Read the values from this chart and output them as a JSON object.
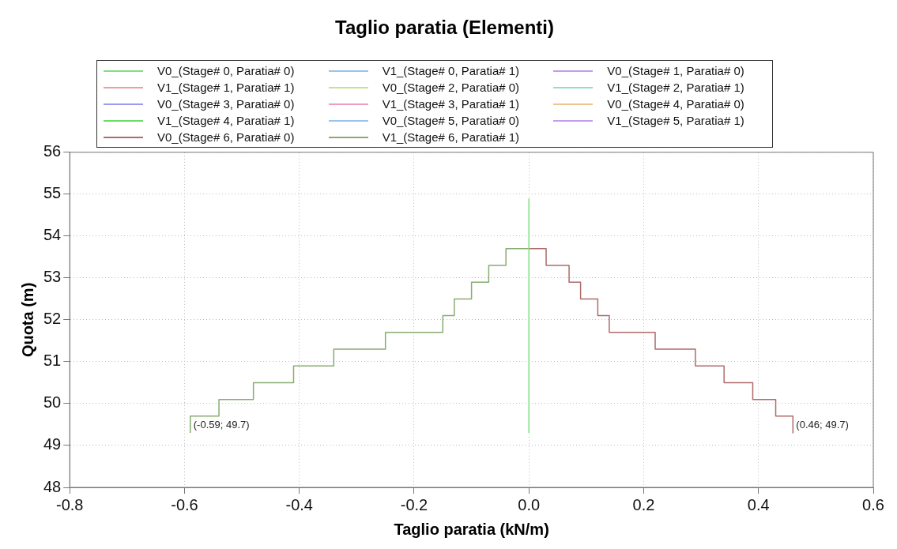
{
  "chart_data": {
    "type": "line",
    "title": "Taglio paratia (Elementi)",
    "xlabel": "Taglio paratia (kN/m)",
    "ylabel": "Quota (m)",
    "xlim": [
      -0.8,
      0.6
    ],
    "xticks": [
      {
        "value": -0.8,
        "label": "-0.8"
      },
      {
        "value": -0.6,
        "label": "-0.6"
      },
      {
        "value": -0.4,
        "label": "-0.4"
      },
      {
        "value": -0.2,
        "label": "-0.2"
      },
      {
        "value": 0,
        "label": "0.0"
      },
      {
        "value": 0.2,
        "label": "0.2"
      },
      {
        "value": 0.4,
        "label": "0.4"
      },
      {
        "value": 0.6,
        "label": "0.6"
      }
    ],
    "ylim": [
      48,
      56
    ],
    "yticks": [
      48,
      49,
      50,
      51,
      52,
      53,
      54,
      55,
      56
    ],
    "grid": true,
    "legend": "top",
    "marker": "none",
    "line_style": "solid",
    "series": [
      {
        "name": "V0_(Stage# 0, Paratia# 0)",
        "color": "#80e080",
        "x": [
          0,
          0
        ],
        "values": [
          49.3,
          54.9
        ]
      },
      {
        "name": "V1_(Stage# 0, Paratia# 1)",
        "color": "#98c4ee",
        "x": [
          null,
          null
        ],
        "values": [
          null,
          null
        ]
      },
      {
        "name": "V0_(Stage# 1, Paratia# 0)",
        "color": "#c49cee",
        "x": [
          null,
          null
        ],
        "values": [
          null,
          null
        ]
      },
      {
        "name": "V1_(Stage# 1, Paratia# 1)",
        "color": "#ee9c9c",
        "x": [
          null,
          null
        ],
        "values": [
          null,
          null
        ]
      },
      {
        "name": "V0_(Stage# 2, Paratia# 0)",
        "color": "#c4e488",
        "x": [
          null,
          null
        ],
        "values": [
          null,
          null
        ]
      },
      {
        "name": "V1_(Stage# 2, Paratia# 1)",
        "color": "#88e4c4",
        "x": [
          null,
          null
        ],
        "values": [
          null,
          null
        ]
      },
      {
        "name": "V0_(Stage# 3, Paratia# 0)",
        "color": "#9c9cee",
        "x": [
          null,
          null
        ],
        "values": [
          null,
          null
        ]
      },
      {
        "name": "V1_(Stage# 3, Paratia# 1)",
        "color": "#ee9cc4",
        "x": [
          null,
          null
        ],
        "values": [
          null,
          null
        ]
      },
      {
        "name": "V0_(Stage# 4, Paratia# 0)",
        "color": "#eec490",
        "x": [
          null,
          null
        ],
        "values": [
          null,
          null
        ]
      },
      {
        "name": "V1_(Stage# 4, Paratia# 1)",
        "color": "#66dd66",
        "x": [
          null,
          null
        ],
        "values": [
          null,
          null
        ]
      },
      {
        "name": "V0_(Stage# 5, Paratia# 0)",
        "color": "#98c4ee",
        "x": [
          null,
          null
        ],
        "values": [
          null,
          null
        ]
      },
      {
        "name": "V1_(Stage# 5, Paratia# 1)",
        "color": "#c49cee",
        "x": [
          null,
          null
        ],
        "values": [
          null,
          null
        ]
      },
      {
        "name": "V0_(Stage# 6, Paratia# 0)",
        "color": "#b06a6a",
        "x": [
          0,
          0.03,
          0.03,
          0.07,
          0.07,
          0.09,
          0.09,
          0.12,
          0.12,
          0.14,
          0.14,
          0.22,
          0.22,
          0.29,
          0.29,
          0.34,
          0.34,
          0.39,
          0.39,
          0.43,
          0.43,
          0.46,
          0.46
        ],
        "values": [
          53.7,
          53.7,
          53.3,
          53.3,
          52.9,
          52.9,
          52.5,
          52.5,
          52.1,
          52.1,
          51.7,
          51.7,
          51.3,
          51.3,
          50.9,
          50.9,
          50.5,
          50.5,
          50.1,
          50.1,
          49.7,
          49.7,
          49.3
        ]
      },
      {
        "name": "V1_(Stage# 6, Paratia# 1)",
        "color": "#88ac70",
        "x": [
          -0.59,
          -0.59,
          -0.54,
          -0.54,
          -0.48,
          -0.48,
          -0.41,
          -0.41,
          -0.34,
          -0.34,
          -0.25,
          -0.25,
          -0.15,
          -0.15,
          -0.13,
          -0.13,
          -0.1,
          -0.1,
          -0.07,
          -0.07,
          -0.04,
          -0.04,
          0
        ],
        "values": [
          49.3,
          49.7,
          49.7,
          50.1,
          50.1,
          50.5,
          50.5,
          50.9,
          50.9,
          51.3,
          51.3,
          51.7,
          51.7,
          52.1,
          52.1,
          52.5,
          52.5,
          52.9,
          52.9,
          53.3,
          53.3,
          53.7,
          53.7
        ]
      }
    ],
    "annotations": [
      {
        "text": "(-0.59; 49.7)",
        "x": -0.59,
        "y": 49.7
      },
      {
        "text": "(0.46; 49.7)",
        "x": 0.46,
        "y": 49.7
      }
    ]
  }
}
